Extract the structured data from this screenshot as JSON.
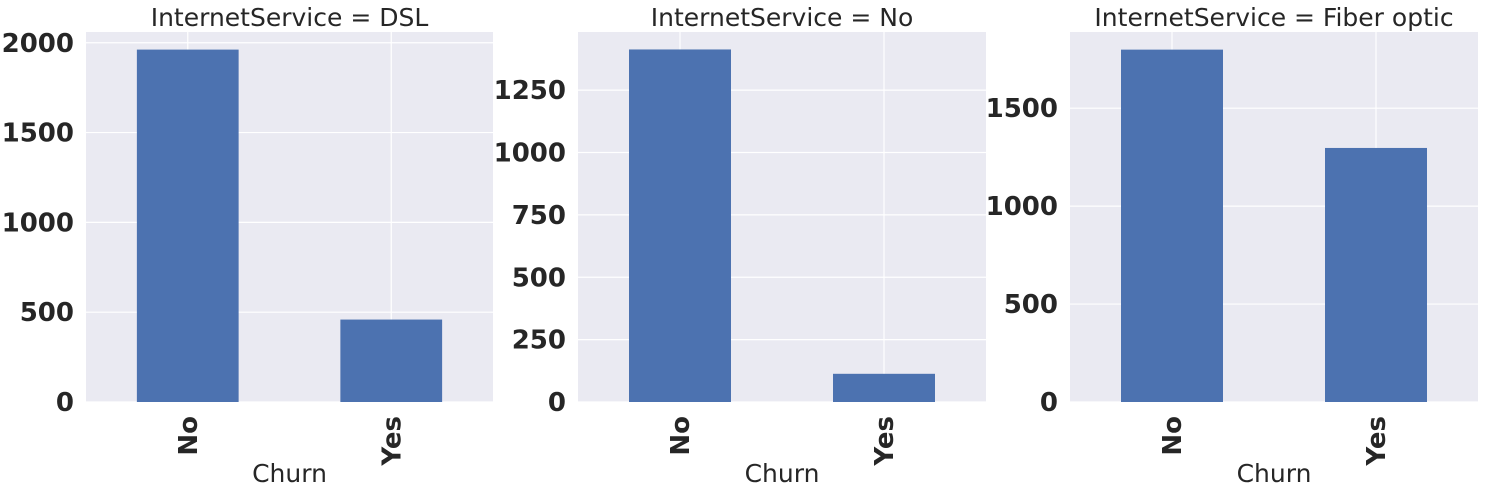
{
  "chart_data": [
    {
      "type": "bar",
      "title": "InternetService = DSL",
      "xlabel": "Churn",
      "ylabel": "",
      "categories": [
        "No",
        "Yes"
      ],
      "values": [
        1962,
        459
      ],
      "ylim": [
        0,
        2060
      ],
      "yticks": [
        0,
        500,
        1000,
        1500,
        2000
      ],
      "grid": true,
      "color": "#4c72b0"
    },
    {
      "type": "bar",
      "title": "InternetService = No",
      "xlabel": "Churn",
      "ylabel": "",
      "categories": [
        "No",
        "Yes"
      ],
      "values": [
        1413,
        113
      ],
      "ylim": [
        0,
        1483
      ],
      "yticks": [
        0,
        250,
        500,
        750,
        1000,
        1250
      ],
      "grid": true,
      "color": "#4c72b0"
    },
    {
      "type": "bar",
      "title": "InternetService = Fiber optic",
      "xlabel": "Churn",
      "ylabel": "",
      "categories": [
        "No",
        "Yes"
      ],
      "values": [
        1799,
        1297
      ],
      "ylim": [
        0,
        1889
      ],
      "yticks": [
        0,
        500,
        1000,
        1500
      ],
      "grid": true,
      "color": "#4c72b0"
    }
  ]
}
